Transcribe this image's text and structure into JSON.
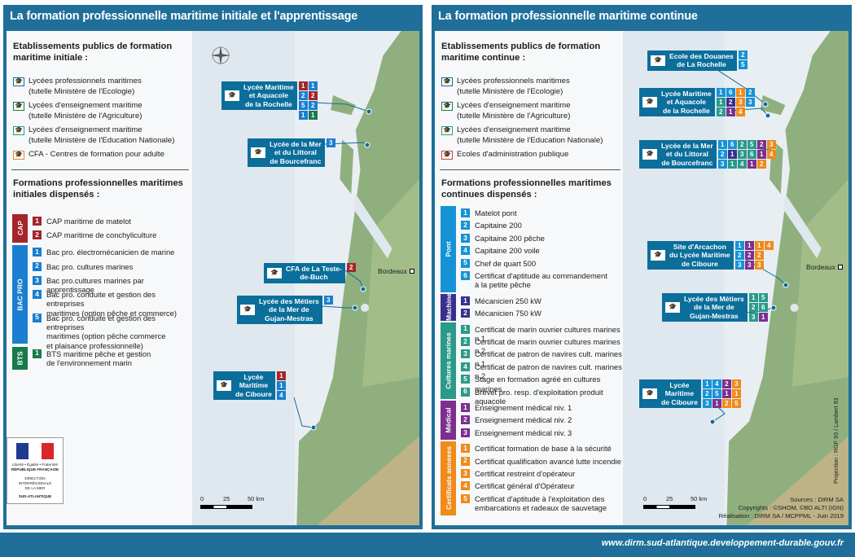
{
  "colors": {
    "blue": "#1f6f9a",
    "site": "#0b6e9b",
    "cap": "#a6252b",
    "bacpro": "#1a7fd0",
    "bts": "#177a4a",
    "pont": "#1593d6",
    "machine": "#3a2f8f",
    "cultures": "#2a9a8a",
    "medical": "#7c2f8e",
    "securite": "#f08a1a"
  },
  "footer": {
    "url": "www.dirm.sud-atlantique.developpement-durable.gouv.fr"
  },
  "logo": {
    "motto": "Liberté • Égalité • Fraternité",
    "republic": "RÉPUBLIQUE FRANÇAISE",
    "dir1": "DIRECTION",
    "dir2": "INTERRÉGIONALE",
    "dir3": "DE LA MER",
    "dir4": "SUD-ATLANTIQUE"
  },
  "left": {
    "title": "La formation professionnelle maritime initiale et l'apprentissage",
    "legend_heading": [
      "Etablissements publics de formation",
      "maritime initiale :"
    ],
    "types": [
      {
        "l1": "Lycées professionnels maritimes",
        "l2": "(tutelle Ministère de l'Ecologie)",
        "color": "#0b6e9b",
        "icon": "graduation-cap-icon"
      },
      {
        "l1": "Lycées d'enseignement maritime",
        "l2": "(tutelle Ministère de l'Agriculture)",
        "color": "#177a4a",
        "icon": "graduation-cap-icon"
      },
      {
        "l1": "Lycées d'enseignement maritime",
        "l2": "(tutelle Ministère de l'Education Nationale)",
        "color": "#2a9a8a",
        "icon": "graduation-cap-icon"
      },
      {
        "l1": "CFA - Centres de formation pour adulte",
        "l2": "",
        "color": "#e8872b",
        "icon": "graduation-cap-icon"
      }
    ],
    "formations_heading": [
      "Formations professionnelles maritimes",
      "initiales dispensés :"
    ],
    "groups": [
      {
        "name": "CAP",
        "color": "#a6252b",
        "items": [
          {
            "n": "1",
            "t": [
              "CAP maritime de matelot"
            ]
          },
          {
            "n": "2",
            "t": [
              "CAP maritime de conchyliculture"
            ]
          }
        ]
      },
      {
        "name": "BAC PRO",
        "color": "#1a7fd0",
        "items": [
          {
            "n": "1",
            "t": [
              "Bac pro. électromécanicien de marine"
            ]
          },
          {
            "n": "2",
            "t": [
              "Bac pro. cultures marines"
            ]
          },
          {
            "n": "3",
            "t": [
              "Bac pro.cultures marines par apprentissage"
            ]
          },
          {
            "n": "4",
            "t": [
              "Bac pro. conduite et gestion des entreprises",
              "maritimes (option pêche et commerce)"
            ]
          },
          {
            "n": "5",
            "t": [
              "Bac pro. conduite et gestion des entreprises",
              "maritimes (option pêche commerce",
              "et plaisance professionnelle)"
            ]
          }
        ]
      },
      {
        "name": "BTS",
        "color": "#177a4a",
        "items": [
          {
            "n": "1",
            "t": [
              "BTS maritime pêche et gestion",
              "de l'environnement marin"
            ]
          }
        ]
      }
    ],
    "sites": [
      {
        "name": [
          "Lycée Maritime",
          "et Aquacole",
          "de la Rochelle"
        ],
        "kind": "ecologie",
        "cells": [
          [
            "1",
            "cap"
          ],
          [
            "1",
            "bacpro"
          ],
          [
            "2",
            "bacpro"
          ],
          [
            "2",
            "cap"
          ],
          [
            "5",
            "bacpro"
          ],
          [
            "2",
            "bacpro"
          ],
          [
            "1",
            "bacpro"
          ],
          [
            "1",
            "bts"
          ]
        ],
        "cols": 2
      },
      {
        "name": [
          "Lycée de la Mer",
          "et du Littoral",
          "de Bourcefranc"
        ],
        "kind": "agri",
        "cells": [
          [
            "3",
            "bacpro"
          ]
        ],
        "cols": 1
      },
      {
        "name": [
          "CFA de La Teste-",
          "de-Buch"
        ],
        "kind": "cfa",
        "cells": [
          [
            "2",
            "cap"
          ]
        ],
        "cols": 1
      },
      {
        "name": [
          "Lycée des Métiers",
          "de la Mer de",
          "Gujan-Mestras"
        ],
        "kind": "educ",
        "cells": [
          [
            "3",
            "bacpro"
          ]
        ],
        "cols": 1
      },
      {
        "name": [
          "Lycée",
          "Maritime",
          "de Ciboure"
        ],
        "kind": "ecologie",
        "cells": [
          [
            "1",
            "cap"
          ],
          [
            "1",
            "bacpro"
          ],
          [
            "4",
            "bacpro"
          ]
        ],
        "cols": 1
      }
    ],
    "city": "Bordeaux",
    "scale": [
      "0",
      "25",
      "50 km"
    ]
  },
  "right": {
    "title": "La formation professionnelle maritime continue",
    "legend_heading": [
      "Etablissements publics de formation",
      "maritime continue :"
    ],
    "types": [
      {
        "l1": "Lycées professionnels maritimes",
        "l2": "(tutelle Ministère de l'Ecologie)",
        "color": "#0b6e9b",
        "icon": "graduation-cap-icon"
      },
      {
        "l1": "Lycées d'enseignement maritime",
        "l2": "(tutelle Ministère de l'Agriculture)",
        "color": "#177a4a",
        "icon": "graduation-cap-icon"
      },
      {
        "l1": "Lycées d'enseignement maritime",
        "l2": "(tutelle Ministère de l'Education Nationale)",
        "color": "#2a9a8a",
        "icon": "graduation-cap-icon"
      },
      {
        "l1": "Ecoles d'administration publique",
        "l2": "",
        "color": "#d23a3a",
        "icon": "graduation-cap-icon"
      }
    ],
    "formations_heading": [
      "Formations professionnelles maritimes",
      "continues dispensés :"
    ],
    "groups": [
      {
        "name": "Pont",
        "color": "#1593d6",
        "items": [
          {
            "n": "1",
            "t": [
              "Matelot pont"
            ]
          },
          {
            "n": "2",
            "t": [
              "Capitaine 200"
            ]
          },
          {
            "n": "3",
            "t": [
              "Capitaine 200 pêche"
            ]
          },
          {
            "n": "4",
            "t": [
              "Capitaine 200 voile"
            ]
          },
          {
            "n": "5",
            "t": [
              "Chef de quart 500"
            ]
          },
          {
            "n": "6",
            "t": [
              "Certificat d'aptitude au commandement",
              "à la petite pêche"
            ]
          }
        ]
      },
      {
        "name": "Machine",
        "color": "#3a2f8f",
        "items": [
          {
            "n": "1",
            "t": [
              "Mécanicien 250 kW"
            ]
          },
          {
            "n": "2",
            "t": [
              "Mécanicien 750 kW"
            ]
          }
        ]
      },
      {
        "name": "Cultures marines",
        "color": "#2a9a8a",
        "items": [
          {
            "n": "1",
            "t": [
              "Certificat de marin ouvrier cultures marines n.1"
            ]
          },
          {
            "n": "2",
            "t": [
              "Certificat de marin ouvrier cultures marines n.2"
            ]
          },
          {
            "n": "3",
            "t": [
              "Certificat de patron de navires cult. marines n.1"
            ]
          },
          {
            "n": "4",
            "t": [
              "Certificat de patron de navires cult. marines n.2"
            ]
          },
          {
            "n": "5",
            "t": [
              "Stage en formation agréé en cultures marines"
            ]
          },
          {
            "n": "6",
            "t": [
              "Brevet pro. resp. d'exploitation produit aquacole"
            ]
          }
        ]
      },
      {
        "name": "Médical",
        "color": "#7c2f8e",
        "items": [
          {
            "n": "1",
            "t": [
              "Enseignement médical niv. 1"
            ]
          },
          {
            "n": "2",
            "t": [
              "Enseignement médical niv. 2"
            ]
          },
          {
            "n": "3",
            "t": [
              "Enseignement médical niv. 3"
            ]
          }
        ]
      },
      {
        "name": "Certificats annexes",
        "color": "#f08a1a",
        "items": [
          {
            "n": "1",
            "t": [
              "Certificat formation de base à la sécurité"
            ]
          },
          {
            "n": "2",
            "t": [
              "Certificat qualification avancé lutte incendie"
            ]
          },
          {
            "n": "3",
            "t": [
              "Certificat restreint d'opérateur"
            ]
          },
          {
            "n": "4",
            "t": [
              "Certificat général d'Opérateur"
            ]
          },
          {
            "n": "5",
            "t": [
              "Certificat d'aptitude à l'exploitation des",
              "embarcations et radeaux de sauvetage"
            ]
          }
        ]
      }
    ],
    "sites": [
      {
        "name": [
          "Ecole des Douanes",
          "de La Rochelle"
        ],
        "kind": "admin",
        "cells": [
          [
            "2",
            "pont"
          ],
          [
            "5",
            "pont"
          ]
        ],
        "cols": 1
      },
      {
        "name": [
          "Lycée Maritime",
          "et Aquacole",
          "de la Rochelle"
        ],
        "kind": "ecologie",
        "cells": [
          [
            "1",
            "pont"
          ],
          [
            "6",
            "pont"
          ],
          [
            "1",
            "securite"
          ],
          [
            "2",
            "pont"
          ],
          [
            "1",
            "cultures"
          ],
          [
            "2",
            "machine"
          ],
          [
            "3",
            "securite"
          ],
          [
            "3",
            "pont"
          ],
          [
            "2",
            "cultures"
          ],
          [
            "1",
            "medical"
          ],
          [
            "4",
            "securite"
          ],
          [
            "",
            "none"
          ]
        ],
        "cols": 4
      },
      {
        "name": [
          "Lycée de la Mer",
          "et du Littoral",
          "de Bourcefranc"
        ],
        "kind": "agri",
        "cells": [
          [
            "1",
            "pont"
          ],
          [
            "6",
            "pont"
          ],
          [
            "2",
            "cultures"
          ],
          [
            "5",
            "cultures"
          ],
          [
            "2",
            "medical"
          ],
          [
            "3",
            "securite"
          ],
          [
            "2",
            "pont"
          ],
          [
            "1",
            "machine"
          ],
          [
            "3",
            "cultures"
          ],
          [
            "6",
            "cultures"
          ],
          [
            "1",
            "medical"
          ],
          [
            "4",
            "securite"
          ],
          [
            "3",
            "pont"
          ],
          [
            "1",
            "cultures"
          ],
          [
            "4",
            "cultures"
          ],
          [
            "1",
            "medical"
          ],
          [
            "2",
            "securite"
          ],
          [
            "",
            "none"
          ]
        ],
        "cols": 6
      },
      {
        "name": [
          "Site d'Arcachon",
          "du Lycée Maritime",
          "de Ciboure"
        ],
        "kind": "ecologie",
        "cells": [
          [
            "1",
            "pont"
          ],
          [
            "1",
            "medical"
          ],
          [
            "1",
            "securite"
          ],
          [
            "4",
            "securite"
          ],
          [
            "2",
            "pont"
          ],
          [
            "2",
            "medical"
          ],
          [
            "2",
            "securite"
          ],
          [
            "",
            "none"
          ],
          [
            "3",
            "pont"
          ],
          [
            "3",
            "medical"
          ],
          [
            "3",
            "securite"
          ],
          [
            "",
            "none"
          ]
        ],
        "cols": 4
      },
      {
        "name": [
          "Lycée des Métiers",
          "de la Mer de",
          "Gujan-Mestras"
        ],
        "kind": "educ",
        "cells": [
          [
            "1",
            "cultures"
          ],
          [
            "5",
            "cultures"
          ],
          [
            "2",
            "cultures"
          ],
          [
            "6",
            "cultures"
          ],
          [
            "3",
            "cultures"
          ],
          [
            "1",
            "medical"
          ]
        ],
        "cols": 2
      },
      {
        "name": [
          "Lycée",
          "Maritime",
          "de Ciboure"
        ],
        "kind": "ecologie",
        "cells": [
          [
            "1",
            "pont"
          ],
          [
            "4",
            "pont"
          ],
          [
            "2",
            "medical"
          ],
          [
            "3",
            "securite"
          ],
          [
            "2",
            "pont"
          ],
          [
            "5",
            "pont"
          ],
          [
            "1",
            "medical"
          ],
          [
            "1",
            "securite"
          ],
          [
            "3",
            "pont"
          ],
          [
            "1",
            "medical"
          ],
          [
            "2",
            "securite"
          ],
          [
            "5",
            "securite"
          ]
        ],
        "cols": 4
      }
    ],
    "city": "Bordeaux",
    "scale": [
      "0",
      "25",
      "50 km"
    ],
    "credits": [
      "Sources : DIRM SA",
      "Copyrights : ©SHOM, ©BD ALTI (IGN)",
      "Réalisation : DIRM SA / MCPPML - Juin 2019"
    ],
    "projection": "Projection : RGF 93 / Lambert 93"
  }
}
